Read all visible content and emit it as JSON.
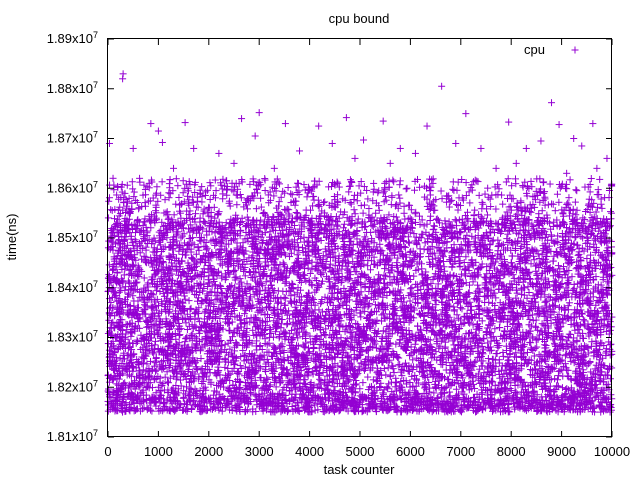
{
  "chart_data": {
    "type": "scatter",
    "title": "cpu bound",
    "xlabel": "task counter",
    "ylabel": "time(ns)",
    "xlim": [
      0,
      10000
    ],
    "ylim": [
      18100000,
      18900000
    ],
    "x_ticks": [
      {
        "value": 0,
        "label": "0"
      },
      {
        "value": 1000,
        "label": "1000"
      },
      {
        "value": 2000,
        "label": "2000"
      },
      {
        "value": 3000,
        "label": "3000"
      },
      {
        "value": 4000,
        "label": "4000"
      },
      {
        "value": 5000,
        "label": "5000"
      },
      {
        "value": 6000,
        "label": "6000"
      },
      {
        "value": 7000,
        "label": "7000"
      },
      {
        "value": 8000,
        "label": "8000"
      },
      {
        "value": 9000,
        "label": "9000"
      },
      {
        "value": 10000,
        "label": "10000"
      }
    ],
    "y_ticks": [
      {
        "value": 18100000,
        "mantissa": "1.81x10",
        "exp": "7"
      },
      {
        "value": 18200000,
        "mantissa": "1.82x10",
        "exp": "7"
      },
      {
        "value": 18300000,
        "mantissa": "1.83x10",
        "exp": "7"
      },
      {
        "value": 18400000,
        "mantissa": "1.84x10",
        "exp": "7"
      },
      {
        "value": 18500000,
        "mantissa": "1.85x10",
        "exp": "7"
      },
      {
        "value": 18600000,
        "mantissa": "1.86x10",
        "exp": "7"
      },
      {
        "value": 18700000,
        "mantissa": "1.87x10",
        "exp": "7"
      },
      {
        "value": 18800000,
        "mantissa": "1.88x10",
        "exp": "7"
      },
      {
        "value": 18900000,
        "mantissa": "1.89x10",
        "exp": "7"
      }
    ],
    "grid": false,
    "legend": "top-right",
    "series": [
      {
        "name": "cpu",
        "marker": "+",
        "color": "#9400d3",
        "points": [
          [
            300,
            18830000
          ],
          [
            290,
            18820000
          ],
          [
            6620,
            18805000
          ],
          [
            8800,
            18772000
          ],
          [
            30,
            18690000
          ],
          [
            850,
            18730000
          ],
          [
            3000,
            18752000
          ],
          [
            4730,
            18742000
          ],
          [
            1000,
            18715000
          ],
          [
            1530,
            18732000
          ],
          [
            2650,
            18740000
          ],
          [
            7100,
            18750000
          ],
          [
            7950,
            18733000
          ],
          [
            8950,
            18728000
          ],
          [
            9620,
            18730000
          ],
          [
            6330,
            18725000
          ],
          [
            3520,
            18730000
          ],
          [
            5460,
            18735000
          ],
          [
            4180,
            18725000
          ],
          [
            1080,
            18692000
          ],
          [
            5070,
            18697000
          ],
          [
            9240,
            18700000
          ],
          [
            2920,
            18705000
          ],
          [
            8590,
            18695000
          ],
          [
            500,
            18680000
          ],
          [
            1700,
            18680000
          ],
          [
            4450,
            18690000
          ],
          [
            5800,
            18680000
          ],
          [
            6900,
            18690000
          ],
          [
            7400,
            18680000
          ],
          [
            8300,
            18680000
          ],
          [
            9400,
            18685000
          ],
          [
            2200,
            18670000
          ],
          [
            3800,
            18675000
          ],
          [
            6100,
            18670000
          ],
          [
            9900,
            18660000
          ],
          [
            100,
            18620000
          ],
          [
            1300,
            18640000
          ],
          [
            2500,
            18650000
          ],
          [
            3300,
            18640000
          ],
          [
            4900,
            18660000
          ],
          [
            5600,
            18650000
          ],
          [
            7700,
            18640000
          ],
          [
            8100,
            18650000
          ],
          [
            9100,
            18630000
          ],
          [
            9700,
            18640000
          ]
        ]
      }
    ]
  }
}
